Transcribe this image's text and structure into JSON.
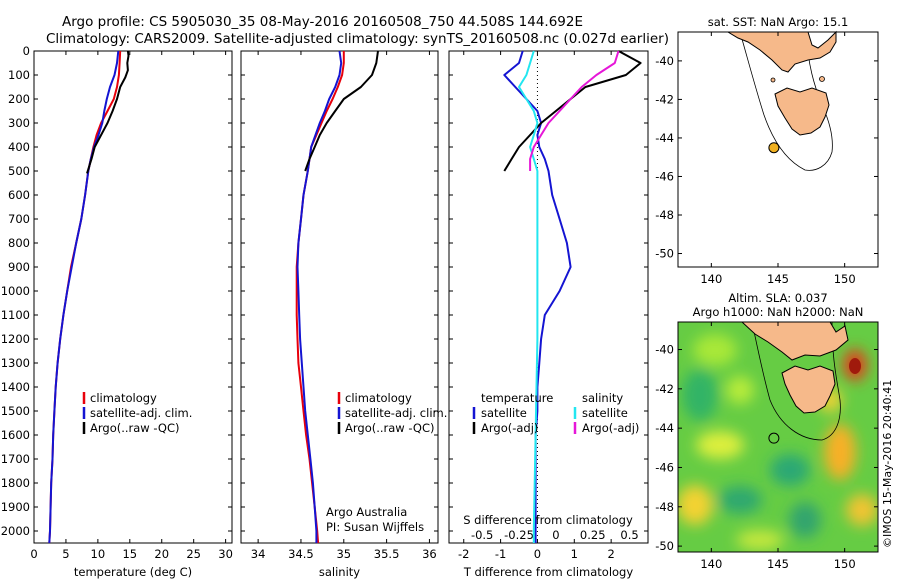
{
  "header": {
    "line1": "Argo profile: CS 5905030_35 08-May-2016 20160508_750 44.508S 144.692E",
    "line2": "Climatology: CARS2009. Satellite-adjusted climatology: synTS_20160508.nc (0.027d earlier)"
  },
  "panels": {
    "credit1": "Argo Australia",
    "credit2": "PI: Susan Wijffels",
    "imos_stamp": "©IMOS 15-May-2016 20:40:41"
  },
  "colors": {
    "climatology": "#e8000b",
    "satellite": "#1414d2",
    "argo": "#000000",
    "sal_satellite": "#22e6f0",
    "sal_argo": "#e617d8",
    "land": "#f6b98a",
    "marker": "#f0b020"
  },
  "chart_data": [
    {
      "type": "line",
      "id": "temperature",
      "xlabel": "temperature (deg C)",
      "xlim": [
        0,
        31
      ],
      "xticks": [
        0,
        5,
        10,
        15,
        20,
        25,
        30
      ],
      "ylim": [
        0,
        2050
      ],
      "yticks": [
        0,
        100,
        200,
        300,
        400,
        500,
        600,
        700,
        800,
        900,
        1000,
        1100,
        1200,
        1300,
        1400,
        1500,
        1600,
        1700,
        1800,
        1900,
        2000
      ],
      "legend": [
        "climatology",
        "satellite-adj. clim.",
        "Argo(..raw -QC)"
      ],
      "series": [
        {
          "name": "climatology",
          "points": [
            [
              13.5,
              0
            ],
            [
              13.4,
              50
            ],
            [
              13.3,
              100
            ],
            [
              13.0,
              150
            ],
            [
              12.5,
              200
            ],
            [
              11.5,
              250
            ],
            [
              10.5,
              300
            ],
            [
              9.8,
              350
            ],
            [
              9.3,
              400
            ],
            [
              8.9,
              450
            ],
            [
              8.5,
              500
            ],
            [
              8.0,
              600
            ],
            [
              7.4,
              700
            ],
            [
              6.6,
              800
            ],
            [
              5.8,
              900
            ],
            [
              5.2,
              1000
            ],
            [
              4.6,
              1100
            ],
            [
              4.1,
              1200
            ],
            [
              3.7,
              1300
            ],
            [
              3.4,
              1400
            ],
            [
              3.2,
              1500
            ],
            [
              3.0,
              1600
            ],
            [
              2.9,
              1700
            ],
            [
              2.7,
              1800
            ],
            [
              2.6,
              1900
            ],
            [
              2.5,
              2000
            ],
            [
              2.4,
              2050
            ]
          ]
        },
        {
          "name": "satellite-adj. clim.",
          "points": [
            [
              13.2,
              0
            ],
            [
              13.0,
              50
            ],
            [
              12.6,
              100
            ],
            [
              11.9,
              150
            ],
            [
              11.4,
              200
            ],
            [
              11.0,
              250
            ],
            [
              10.7,
              300
            ],
            [
              10.1,
              350
            ],
            [
              9.4,
              400
            ],
            [
              8.9,
              450
            ],
            [
              8.5,
              500
            ],
            [
              8.0,
              600
            ],
            [
              7.4,
              700
            ],
            [
              6.6,
              800
            ],
            [
              5.9,
              900
            ],
            [
              5.2,
              1000
            ],
            [
              4.6,
              1100
            ],
            [
              4.1,
              1200
            ],
            [
              3.7,
              1300
            ],
            [
              3.4,
              1400
            ],
            [
              3.2,
              1500
            ],
            [
              3.0,
              1600
            ],
            [
              2.9,
              1700
            ],
            [
              2.7,
              1800
            ],
            [
              2.6,
              1900
            ],
            [
              2.5,
              2000
            ],
            [
              2.4,
              2050
            ]
          ]
        },
        {
          "name": "Argo(..raw -QC)",
          "points": [
            [
              14.7,
              0
            ],
            [
              14.8,
              20
            ],
            [
              14.6,
              50
            ],
            [
              14.7,
              80
            ],
            [
              14.3,
              110
            ],
            [
              13.5,
              150
            ],
            [
              13.0,
              200
            ],
            [
              12.3,
              250
            ],
            [
              11.5,
              300
            ],
            [
              10.5,
              350
            ],
            [
              9.5,
              400
            ],
            [
              9.0,
              450
            ],
            [
              8.3,
              510
            ]
          ]
        }
      ]
    },
    {
      "type": "line",
      "id": "salinity",
      "xlabel": "salinity",
      "xlim": [
        33.8,
        36.1
      ],
      "xticks": [
        34,
        34.5,
        35,
        35.5,
        36
      ],
      "ylim": [
        0,
        2050
      ],
      "legend": [
        "climatology",
        "satellite-adj. clim.",
        "Argo(..raw -QC)"
      ],
      "series": [
        {
          "name": "climatology",
          "points": [
            [
              35.0,
              0
            ],
            [
              35.0,
              50
            ],
            [
              34.98,
              100
            ],
            [
              34.93,
              150
            ],
            [
              34.87,
              200
            ],
            [
              34.8,
              250
            ],
            [
              34.74,
              300
            ],
            [
              34.68,
              350
            ],
            [
              34.62,
              400
            ],
            [
              34.58,
              500
            ],
            [
              34.53,
              600
            ],
            [
              34.5,
              700
            ],
            [
              34.47,
              800
            ],
            [
              34.45,
              900
            ],
            [
              34.45,
              1000
            ],
            [
              34.45,
              1100
            ],
            [
              34.46,
              1200
            ],
            [
              34.47,
              1300
            ],
            [
              34.5,
              1400
            ],
            [
              34.53,
              1500
            ],
            [
              34.56,
              1600
            ],
            [
              34.6,
              1700
            ],
            [
              34.63,
              1800
            ],
            [
              34.66,
              1900
            ],
            [
              34.69,
              2000
            ],
            [
              34.7,
              2050
            ]
          ]
        },
        {
          "name": "satellite-adj. clim.",
          "points": [
            [
              34.95,
              0
            ],
            [
              34.97,
              50
            ],
            [
              34.95,
              100
            ],
            [
              34.9,
              150
            ],
            [
              34.83,
              200
            ],
            [
              34.78,
              250
            ],
            [
              34.72,
              300
            ],
            [
              34.67,
              350
            ],
            [
              34.62,
              400
            ],
            [
              34.58,
              500
            ],
            [
              34.53,
              600
            ],
            [
              34.5,
              700
            ],
            [
              34.47,
              800
            ],
            [
              34.46,
              900
            ],
            [
              34.47,
              1000
            ],
            [
              34.48,
              1100
            ],
            [
              34.49,
              1200
            ],
            [
              34.51,
              1300
            ],
            [
              34.53,
              1400
            ],
            [
              34.55,
              1500
            ],
            [
              34.58,
              1600
            ],
            [
              34.61,
              1700
            ],
            [
              34.64,
              1800
            ],
            [
              34.66,
              1900
            ],
            [
              34.68,
              2000
            ],
            [
              34.68,
              2050
            ]
          ]
        },
        {
          "name": "Argo(..raw -QC)",
          "points": [
            [
              35.4,
              0
            ],
            [
              35.38,
              50
            ],
            [
              35.33,
              100
            ],
            [
              35.2,
              150
            ],
            [
              35.0,
              200
            ],
            [
              34.9,
              250
            ],
            [
              34.8,
              300
            ],
            [
              34.72,
              350
            ],
            [
              34.66,
              400
            ],
            [
              34.6,
              450
            ],
            [
              34.55,
              500
            ]
          ]
        }
      ]
    },
    {
      "type": "line",
      "id": "differences",
      "xlabel": "T difference from climatology",
      "xlabel_top": "S difference from climatology",
      "xlim": [
        -2.4,
        3.0
      ],
      "xticks": [
        -2,
        -1,
        0,
        1,
        2
      ],
      "xticks_top": [
        "-0.5",
        "-0.25",
        "0",
        "0.25",
        "0.5"
      ],
      "ylim": [
        0,
        2050
      ],
      "legend_left": {
        "title": "temperature",
        "items": [
          "satellite",
          "Argo(-adj)"
        ]
      },
      "legend_right": {
        "title": "salinity",
        "items": [
          "satellite",
          "Argo(-adj)"
        ]
      },
      "series": [
        {
          "name": "temperature satellite",
          "points": [
            [
              -0.4,
              0
            ],
            [
              -0.5,
              50
            ],
            [
              -0.9,
              100
            ],
            [
              -0.6,
              150
            ],
            [
              -0.3,
              200
            ],
            [
              0.0,
              250
            ],
            [
              0.1,
              300
            ],
            [
              0.0,
              350
            ],
            [
              0.05,
              400
            ],
            [
              0.2,
              450
            ],
            [
              0.3,
              500
            ],
            [
              0.4,
              600
            ],
            [
              0.6,
              700
            ],
            [
              0.8,
              800
            ],
            [
              0.9,
              900
            ],
            [
              0.6,
              1000
            ],
            [
              0.2,
              1100
            ],
            [
              0.1,
              1200
            ],
            [
              0.05,
              1300
            ],
            [
              0.0,
              1400
            ],
            [
              0.0,
              1500
            ],
            [
              -0.05,
              1600
            ],
            [
              -0.05,
              1700
            ],
            [
              -0.05,
              1800
            ],
            [
              -0.05,
              1900
            ],
            [
              -0.05,
              2000
            ],
            [
              -0.05,
              2050
            ]
          ]
        },
        {
          "name": "temperature Argo(-adj)",
          "points": [
            [
              2.2,
              0
            ],
            [
              2.8,
              50
            ],
            [
              2.4,
              100
            ],
            [
              1.3,
              150
            ],
            [
              0.9,
              200
            ],
            [
              0.5,
              250
            ],
            [
              0.1,
              300
            ],
            [
              -0.2,
              350
            ],
            [
              -0.5,
              400
            ],
            [
              -0.7,
              450
            ],
            [
              -0.9,
              500
            ]
          ]
        },
        {
          "name": "salinity satellite",
          "points": [
            [
              -0.1,
              0
            ],
            [
              -0.2,
              50
            ],
            [
              -0.3,
              100
            ],
            [
              -0.5,
              150
            ],
            [
              -0.3,
              200
            ],
            [
              -0.1,
              250
            ],
            [
              0.0,
              300
            ],
            [
              -0.1,
              350
            ],
            [
              -0.2,
              400
            ],
            [
              -0.1,
              450
            ],
            [
              0.0,
              500
            ],
            [
              0.0,
              800
            ],
            [
              0.0,
              1200
            ],
            [
              -0.05,
              1600
            ],
            [
              -0.1,
              2000
            ],
            [
              -0.1,
              2050
            ]
          ]
        },
        {
          "name": "salinity Argo(-adj)",
          "points": [
            [
              2.2,
              0
            ],
            [
              2.1,
              50
            ],
            [
              1.6,
              100
            ],
            [
              1.2,
              150
            ],
            [
              0.9,
              200
            ],
            [
              0.6,
              250
            ],
            [
              0.3,
              300
            ],
            [
              0.1,
              350
            ],
            [
              -0.1,
              400
            ],
            [
              -0.2,
              450
            ],
            [
              -0.2,
              500
            ]
          ]
        }
      ]
    },
    {
      "type": "map",
      "id": "sst_map",
      "title": "sat. SST: NaN Argo: 15.1",
      "xticks": [
        140,
        145,
        150
      ],
      "yticks": [
        -40,
        -42,
        -44,
        -46,
        -48,
        -50
      ],
      "xlim": [
        137.5,
        152.5
      ],
      "ylim": [
        -50.7,
        -38.5
      ],
      "marker": [
        144.692,
        -44.508
      ]
    },
    {
      "type": "map",
      "id": "sla_map",
      "title": "Altim. SLA: 0.037",
      "subtitle": "Argo h1000: NaN h2000: NaN",
      "xticks": [
        140,
        145,
        150
      ],
      "yticks": [
        -40,
        -42,
        -44,
        -46,
        -48,
        -50
      ],
      "xlim": [
        137.5,
        152.5
      ],
      "ylim": [
        -50.3,
        -38.6
      ],
      "marker": [
        144.692,
        -44.508
      ]
    }
  ]
}
